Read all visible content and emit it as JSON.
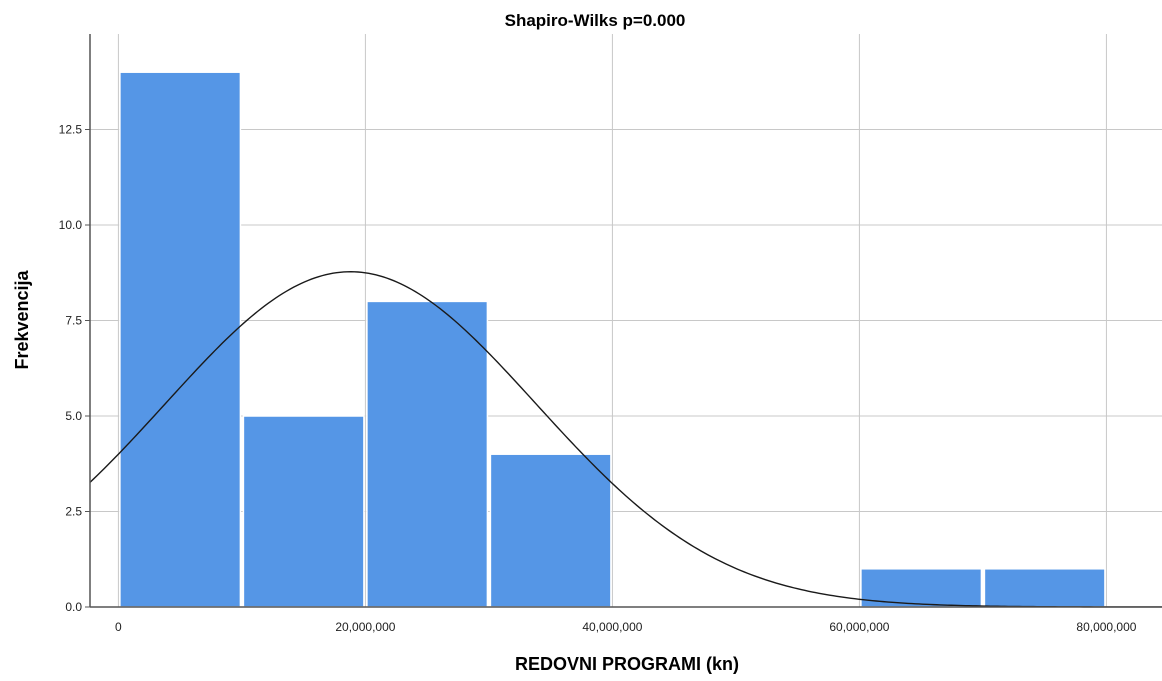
{
  "chart_data": {
    "type": "bar",
    "title": "Shapiro-Wilks p=0.000",
    "xlabel": "REDOVNI PROGRAMI (kn)",
    "ylabel": "Frekvencija",
    "bins": [
      {
        "from": 0,
        "to": 10000000,
        "count": 14
      },
      {
        "from": 10000000,
        "to": 20000000,
        "count": 5
      },
      {
        "from": 20000000,
        "to": 30000000,
        "count": 8
      },
      {
        "from": 30000000,
        "to": 40000000,
        "count": 4
      },
      {
        "from": 60000000,
        "to": 70000000,
        "count": 1
      },
      {
        "from": 70000000,
        "to": 80000000,
        "count": 1
      }
    ],
    "normal_curve": {
      "mean": 18800000,
      "std": 15000000,
      "n": 33,
      "bin_width": 10000000
    },
    "xlim": [
      -2300000,
      84500000
    ],
    "ylim": [
      0,
      15
    ],
    "x_ticks": [
      {
        "value": 0,
        "label": "0"
      },
      {
        "value": 20000000,
        "label": "20,000,000"
      },
      {
        "value": 40000000,
        "label": "40,000,000"
      },
      {
        "value": 60000000,
        "label": "60,000,000"
      },
      {
        "value": 80000000,
        "label": "80,000,000"
      }
    ],
    "y_ticks": [
      {
        "value": 0,
        "label": "0.0"
      },
      {
        "value": 2.5,
        "label": "2.5"
      },
      {
        "value": 5,
        "label": "5.0"
      },
      {
        "value": 7.5,
        "label": "7.5"
      },
      {
        "value": 10,
        "label": "10.0"
      },
      {
        "value": 12.5,
        "label": "12.5"
      }
    ],
    "grid": true,
    "bar_color": "#5596e6",
    "bar_edge_color": "#ffffff",
    "curve_color": "#1a1a1a"
  }
}
